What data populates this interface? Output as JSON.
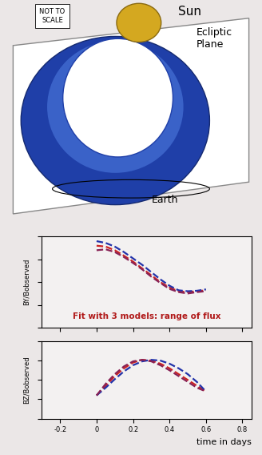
{
  "diagram": {
    "sun": "Sun",
    "note": "NOT TO\nSCALE",
    "plane": "Ecliptic\nPlane",
    "earth": "Earth"
  },
  "chart_data": [
    {
      "type": "line",
      "ylabel": "BY/Bobserved",
      "annotation": "Fit with 3 models: range of flux",
      "x": [
        0,
        0.05,
        0.1,
        0.15,
        0.2,
        0.25,
        0.3,
        0.35,
        0.4,
        0.45,
        0.5,
        0.55,
        0.6
      ],
      "xlim": [
        -0.3,
        0.85
      ],
      "xticks": [
        -0.2,
        0,
        0.2,
        0.4,
        0.6,
        0.8
      ],
      "ylim": [
        -1,
        1
      ],
      "yticks": [
        -1,
        -0.5,
        0,
        0.5,
        1
      ],
      "tick_labels": false,
      "grid": false,
      "line_style": "dashed",
      "series": [
        {
          "color": "#cc2222",
          "values": [
            0.8,
            0.78,
            0.7,
            0.58,
            0.45,
            0.3,
            0.15,
            0.0,
            -0.12,
            -0.2,
            -0.22,
            -0.2,
            -0.18
          ]
        },
        {
          "color": "#2233aa",
          "values": [
            0.9,
            0.86,
            0.78,
            0.66,
            0.52,
            0.38,
            0.22,
            0.06,
            -0.08,
            -0.18,
            -0.2,
            -0.19,
            -0.16
          ]
        },
        {
          "color": "#882255",
          "values": [
            0.7,
            0.72,
            0.66,
            0.55,
            0.42,
            0.28,
            0.12,
            -0.02,
            -0.15,
            -0.22,
            -0.25,
            -0.22,
            -0.2
          ]
        }
      ]
    },
    {
      "type": "line",
      "ylabel": "BZ/Bobserved",
      "xlabel": "time in days",
      "x": [
        0,
        0.05,
        0.1,
        0.15,
        0.2,
        0.25,
        0.3,
        0.35,
        0.4,
        0.45,
        0.5,
        0.55,
        0.6
      ],
      "xlim": [
        -0.3,
        0.85
      ],
      "xticks": [
        -0.2,
        0,
        0.2,
        0.4,
        0.6,
        0.8
      ],
      "ylim": [
        -1,
        1
      ],
      "yticks": [
        -1,
        -0.5,
        0,
        0.5,
        1
      ],
      "tick_labels": "x",
      "grid": false,
      "line_style": "dashed",
      "series": [
        {
          "color": "#cc2222",
          "values": [
            -0.4,
            -0.15,
            0.1,
            0.3,
            0.45,
            0.52,
            0.5,
            0.42,
            0.3,
            0.15,
            0.0,
            -0.15,
            -0.3
          ]
        },
        {
          "color": "#2233aa",
          "values": [
            -0.4,
            -0.2,
            0.02,
            0.22,
            0.38,
            0.48,
            0.52,
            0.5,
            0.42,
            0.3,
            0.15,
            -0.05,
            -0.3
          ]
        },
        {
          "color": "#882255",
          "values": [
            -0.4,
            -0.1,
            0.15,
            0.35,
            0.48,
            0.52,
            0.48,
            0.38,
            0.25,
            0.1,
            -0.05,
            -0.2,
            -0.3
          ]
        }
      ]
    }
  ]
}
